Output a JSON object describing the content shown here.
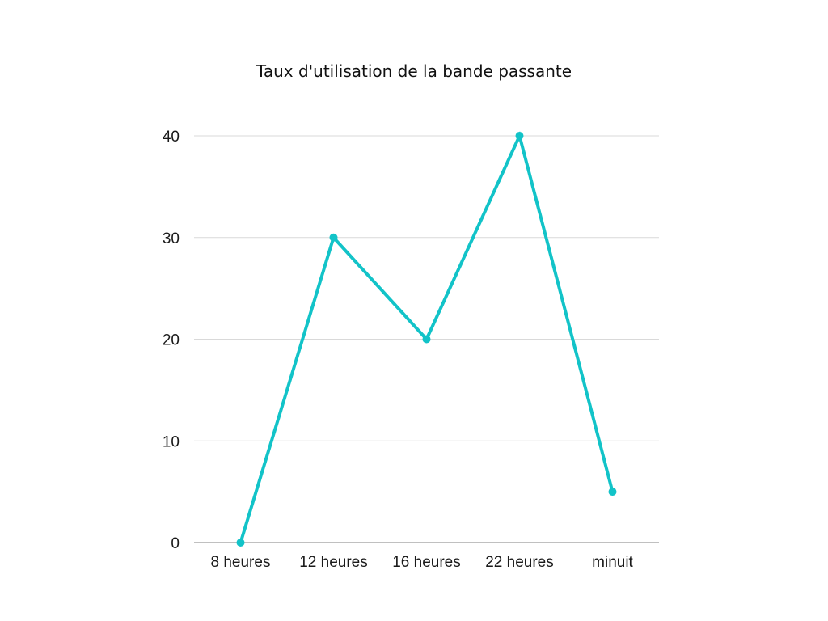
{
  "chart_data": {
    "type": "line",
    "title": "Taux d'utilisation de la bande passante",
    "xlabel": "",
    "ylabel": "",
    "categories": [
      "8 heures",
      "12 heures",
      "16 heures",
      "22 heures",
      "minuit"
    ],
    "series": [
      {
        "values": [
          0,
          30,
          20,
          40,
          5
        ]
      }
    ],
    "ylim": [
      0,
      40
    ],
    "yticks": [
      0,
      10,
      20,
      30,
      40
    ],
    "grid": true,
    "legend": "none",
    "colors": {
      "line": "#12c3c8",
      "grid": "#d9d9d9",
      "axis": "#9a9a9a"
    }
  }
}
